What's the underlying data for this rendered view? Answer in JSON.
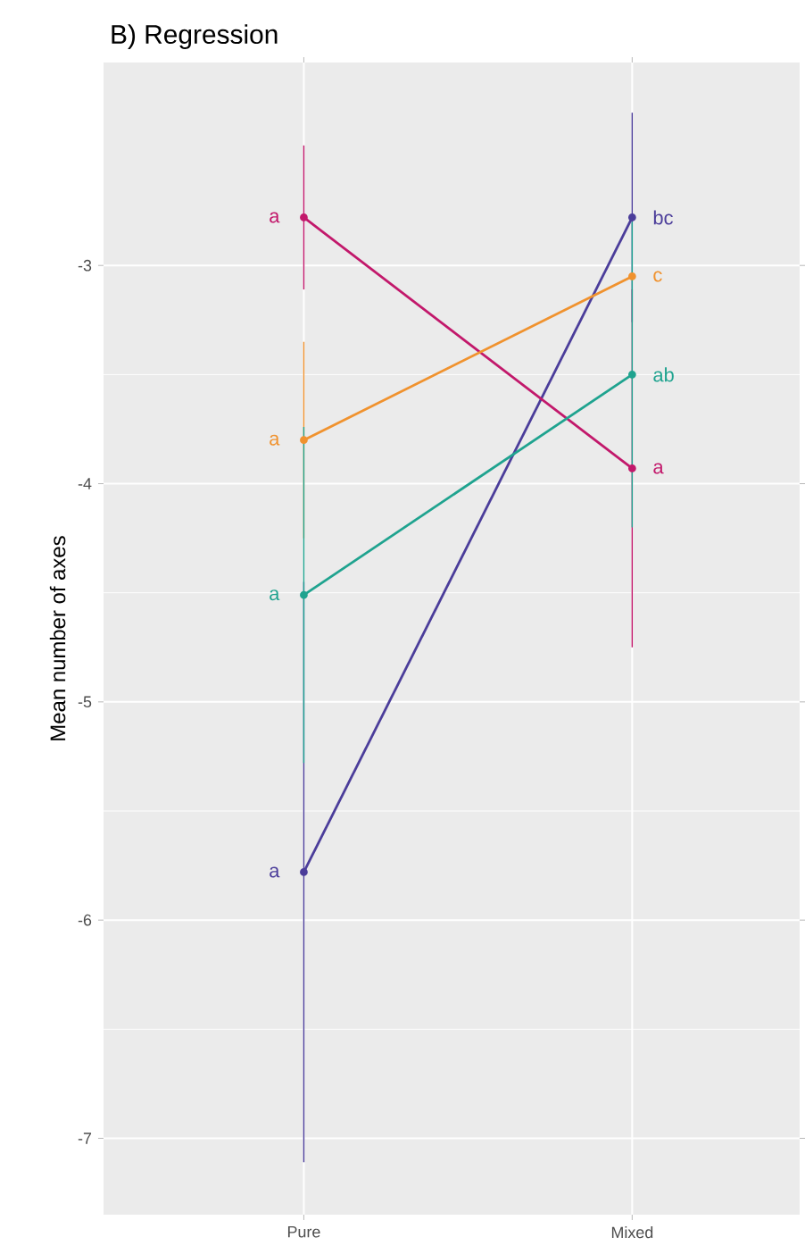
{
  "chart_data": {
    "type": "line",
    "title": "B) Regression",
    "ylabel": "Mean number of axes",
    "categories": [
      "Pure",
      "Mixed"
    ],
    "series": [
      {
        "color": "#4b3d9a",
        "values": [
          -5.78,
          -2.78
        ],
        "errors": [
          1.33,
          0.48
        ],
        "value_labels": [
          "a",
          "bc"
        ]
      },
      {
        "color": "#c2186b",
        "values": [
          -2.78,
          -3.93
        ],
        "errors": [
          0.33,
          0.82
        ],
        "value_labels": [
          "a",
          "a"
        ]
      },
      {
        "color": "#f0922e",
        "values": [
          -3.8,
          -3.05
        ],
        "errors": [
          0.45,
          null
        ],
        "value_labels": [
          "a",
          "c"
        ]
      },
      {
        "color": "#1fa38f",
        "values": [
          -4.51,
          -3.5
        ],
        "errors": [
          0.77,
          0.7
        ],
        "value_labels": [
          "a",
          "ab"
        ]
      }
    ],
    "ylim": [
      -7.35,
      -2.07
    ],
    "yticks": [
      -3,
      -4,
      -5,
      -6,
      -7
    ],
    "grid": true,
    "marker": "circle",
    "line_style": "solid"
  }
}
